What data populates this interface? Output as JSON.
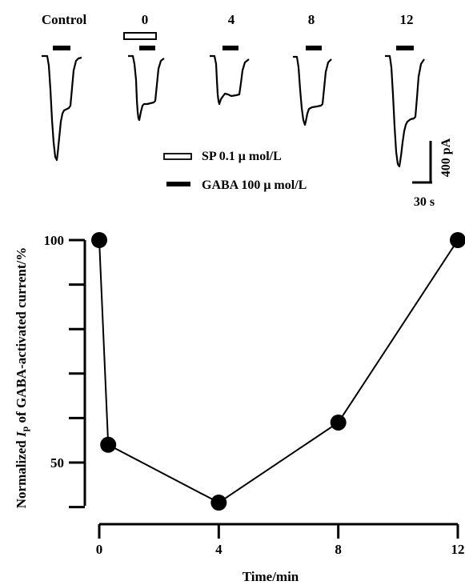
{
  "traces": {
    "conditions": [
      "Control",
      "0",
      "4",
      "8",
      "12"
    ],
    "legend": [
      {
        "key": "sp",
        "label": "SP 0.1 μ mol/L",
        "style": "open-bar"
      },
      {
        "key": "gaba",
        "label": "GABA 100 μ mol/L",
        "style": "solid-bar"
      }
    ],
    "scale": {
      "current": "400 pA",
      "time": "30 s"
    }
  },
  "chart_data": {
    "type": "line",
    "title": "",
    "xlabel": "Time/min",
    "ylabel": "Normalized Ip of GABA-activated current/%",
    "ylabel_parts": {
      "pre": "Normalized ",
      "italic": "I",
      "sub": "p",
      "post": " of GABA-activated current/%"
    },
    "xlim": [
      0,
      12
    ],
    "ylim": [
      40,
      100
    ],
    "x_ticks": [
      0,
      4,
      8,
      12
    ],
    "y_ticks": [
      40,
      50,
      60,
      70,
      80,
      90,
      100
    ],
    "y_tick_labels": [
      {
        "value": 50,
        "label": "50"
      },
      {
        "value": 100,
        "label": "100"
      }
    ],
    "grid": false,
    "series": [
      {
        "x": [
          0,
          0.3,
          4,
          8,
          12
        ],
        "values": [
          100,
          54,
          41,
          59,
          100
        ]
      }
    ]
  }
}
